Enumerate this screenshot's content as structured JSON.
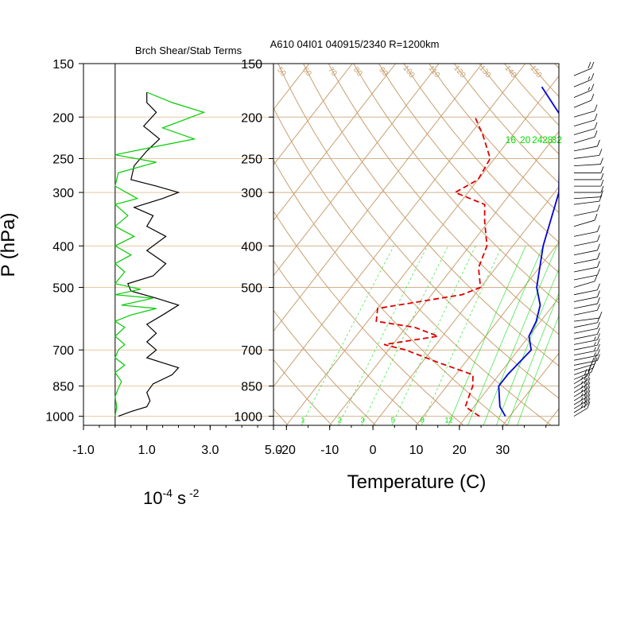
{
  "chart_data": [
    {
      "type": "line",
      "title": "Brch Shear/Stab Terms",
      "ylabel": "P (hPa)",
      "xlabel_base": "10",
      "xlabel_exp": "-4",
      "xlabel_unit": "s",
      "xlabel_unit_exp": "-2",
      "xlim": [
        -1.0,
        5.0
      ],
      "ylim": [
        1050,
        150
      ],
      "y_scale": "log",
      "xticks": [
        "-1.0",
        "1.0",
        "3.0",
        "5.0"
      ],
      "yticks": [
        150,
        200,
        250,
        300,
        400,
        500,
        700,
        850,
        1000
      ],
      "ytick_labels": [
        "150",
        "200",
        "250",
        "300",
        "400",
        "500",
        "700",
        "850",
        "1000"
      ],
      "grid": "horizontal",
      "grid_color": "#e8c9a0",
      "zero_line_x": 0,
      "series": [
        {
          "color": "#000000",
          "points": [
            [
              0.1,
              1000
            ],
            [
              0.5,
              975
            ],
            [
              1.0,
              950
            ],
            [
              1.1,
              920
            ],
            [
              1.0,
              880
            ],
            [
              1.2,
              840
            ],
            [
              1.8,
              800
            ],
            [
              2.0,
              770
            ],
            [
              1.5,
              750
            ],
            [
              1.0,
              730
            ],
            [
              1.3,
              700
            ],
            [
              1.0,
              670
            ],
            [
              1.3,
              640
            ],
            [
              1.0,
              610
            ],
            [
              1.5,
              580
            ],
            [
              2.0,
              550
            ],
            [
              1.3,
              530
            ],
            [
              0.5,
              510
            ],
            [
              0.4,
              490
            ],
            [
              1.2,
              470
            ],
            [
              1.6,
              440
            ],
            [
              1.0,
              410
            ],
            [
              1.6,
              380
            ],
            [
              1.0,
              360
            ],
            [
              1.2,
              340
            ],
            [
              0.6,
              325
            ],
            [
              1.5,
              310
            ],
            [
              2.0,
              300
            ],
            [
              1.3,
              290
            ],
            [
              0.5,
              280
            ],
            [
              0.6,
              260
            ],
            [
              1.0,
              240
            ],
            [
              1.4,
              225
            ],
            [
              0.9,
              210
            ],
            [
              1.3,
              195
            ],
            [
              1.0,
              185
            ],
            [
              1.0,
              175
            ]
          ]
        },
        {
          "color": "#00cc00",
          "points": [
            [
              0.0,
              1000
            ],
            [
              0.05,
              950
            ],
            [
              0.0,
              900
            ],
            [
              0.1,
              860
            ],
            [
              0.2,
              830
            ],
            [
              0.0,
              790
            ],
            [
              0.3,
              760
            ],
            [
              0.0,
              730
            ],
            [
              0.1,
              700
            ],
            [
              0.3,
              680
            ],
            [
              0.0,
              650
            ],
            [
              0.3,
              620
            ],
            [
              0.0,
              600
            ],
            [
              0.5,
              580
            ],
            [
              1.3,
              560
            ],
            [
              0.2,
              550
            ],
            [
              1.2,
              530
            ],
            [
              0.0,
              520
            ],
            [
              0.8,
              505
            ],
            [
              0.0,
              490
            ],
            [
              0.3,
              460
            ],
            [
              0.0,
              440
            ],
            [
              0.5,
              420
            ],
            [
              0.0,
              400
            ],
            [
              0.6,
              380
            ],
            [
              0.0,
              360
            ],
            [
              0.4,
              340
            ],
            [
              0.0,
              320
            ],
            [
              0.7,
              310
            ],
            [
              0.0,
              290
            ],
            [
              0.1,
              270
            ],
            [
              1.3,
              255
            ],
            [
              0.0,
              245
            ],
            [
              1.2,
              235
            ],
            [
              2.5,
              225
            ],
            [
              1.5,
              212
            ],
            [
              2.8,
              195
            ],
            [
              1.8,
              185
            ],
            [
              1.0,
              175
            ]
          ]
        }
      ]
    },
    {
      "type": "line",
      "subtype": "skew-T",
      "title": "A610 04I01 040915/2340 R=1200km",
      "xlabel": "Temperature (C)",
      "xticks": [
        "-20",
        "-10",
        "0",
        "10",
        "20",
        "30"
      ],
      "xtick_values": [
        -20,
        -10,
        0,
        10,
        20,
        30
      ],
      "xlim": [
        -23,
        43
      ],
      "ylim": [
        1050,
        150
      ],
      "y_scale": "log",
      "yticks": [
        150,
        200,
        250,
        300,
        400,
        500,
        700,
        850,
        1000
      ],
      "ytick_labels": [
        "150",
        "200",
        "250",
        "300",
        "400",
        "500",
        "700",
        "850",
        "1000"
      ],
      "skew": 40,
      "isotherms": [
        -100,
        -90,
        -80,
        -70,
        -60,
        -50,
        -40,
        -30,
        -20,
        -10,
        0,
        10,
        20,
        30,
        40
      ],
      "isotherm_labels": [
        {
          "text": "-20",
          "p": 1000,
          "t": -20
        },
        {
          "text": "-10",
          "p": 1000,
          "t": -10
        },
        {
          "text": "0",
          "p": 1000,
          "t": 0
        }
      ],
      "isotherm_color": "#c8a070",
      "mixing_ratio_lines": [
        "1",
        "2",
        "3",
        "5",
        "8",
        "12",
        "16",
        "20",
        "24",
        "28",
        "32"
      ],
      "mixing_ratio_color": "#00dd00",
      "dry_adiabat_color": "#c8a070",
      "top_labels": [
        "50",
        "60",
        "70",
        "80",
        "90",
        "100",
        "110",
        "120",
        "130",
        "140",
        "150"
      ],
      "series": [
        {
          "name": "temperature",
          "color": "#0000dd",
          "style": "solid",
          "points": [
            [
              29,
              1000
            ],
            [
              26,
              950
            ],
            [
              22,
              850
            ],
            [
              22,
              800
            ],
            [
              23,
              700
            ],
            [
              20,
              650
            ],
            [
              19,
              600
            ],
            [
              17,
              550
            ],
            [
              13,
              500
            ],
            [
              7,
              400
            ],
            [
              1,
              300
            ],
            [
              -5,
              250
            ],
            [
              -12,
              200
            ],
            [
              -22,
              170
            ]
          ]
        },
        {
          "name": "dewpoint",
          "color": "#dd0000",
          "style": "dashed",
          "points": [
            [
              23,
              1000
            ],
            [
              18,
              950
            ],
            [
              17,
              900
            ],
            [
              16,
              850
            ],
            [
              14,
              800
            ],
            [
              4,
              750
            ],
            [
              -6,
              700
            ],
            [
              -12,
              680
            ],
            [
              -1,
              650
            ],
            [
              -8,
              620
            ],
            [
              -18,
              600
            ],
            [
              -20,
              560
            ],
            [
              -3,
              520
            ],
            [
              0,
              500
            ],
            [
              -4,
              450
            ],
            [
              -6,
              400
            ],
            [
              -11,
              350
            ],
            [
              -14,
              320
            ],
            [
              -23,
              300
            ],
            [
              -20,
              280
            ],
            [
              -21,
              250
            ],
            [
              -27,
              220
            ],
            [
              -32,
              200
            ]
          ]
        }
      ]
    }
  ],
  "wind_profile": {
    "color": "#000000",
    "barbs": [
      [
        1000,
        330,
        25
      ],
      [
        980,
        330,
        25
      ],
      [
        960,
        330,
        25
      ],
      [
        940,
        330,
        25
      ],
      [
        920,
        330,
        25
      ],
      [
        900,
        330,
        25
      ],
      [
        880,
        330,
        25
      ],
      [
        860,
        330,
        25
      ],
      [
        840,
        330,
        20
      ],
      [
        820,
        320,
        20
      ],
      [
        800,
        315,
        20
      ],
      [
        780,
        310,
        20
      ],
      [
        760,
        300,
        20
      ],
      [
        740,
        300,
        15
      ],
      [
        720,
        300,
        15
      ],
      [
        700,
        300,
        15
      ],
      [
        680,
        300,
        15
      ],
      [
        660,
        300,
        10
      ],
      [
        640,
        300,
        10
      ],
      [
        620,
        300,
        10
      ],
      [
        600,
        290,
        10
      ],
      [
        580,
        300,
        10
      ],
      [
        560,
        300,
        10
      ],
      [
        540,
        300,
        10
      ],
      [
        520,
        300,
        10
      ],
      [
        500,
        310,
        10
      ],
      [
        480,
        300,
        10
      ],
      [
        460,
        300,
        10
      ],
      [
        440,
        300,
        10
      ],
      [
        420,
        300,
        10
      ],
      [
        400,
        300,
        10
      ],
      [
        380,
        300,
        10
      ],
      [
        360,
        310,
        10
      ],
      [
        340,
        300,
        10
      ],
      [
        320,
        290,
        10
      ],
      [
        310,
        280,
        10
      ],
      [
        300,
        270,
        10
      ],
      [
        290,
        270,
        10
      ],
      [
        280,
        270,
        10
      ],
      [
        270,
        270,
        10
      ],
      [
        260,
        280,
        10
      ],
      [
        250,
        290,
        10
      ],
      [
        240,
        300,
        10
      ],
      [
        230,
        310,
        10
      ],
      [
        220,
        310,
        10
      ],
      [
        210,
        310,
        10
      ],
      [
        200,
        310,
        10
      ],
      [
        190,
        320,
        10
      ],
      [
        180,
        320,
        15
      ],
      [
        170,
        320,
        15
      ],
      [
        160,
        320,
        20
      ]
    ]
  }
}
